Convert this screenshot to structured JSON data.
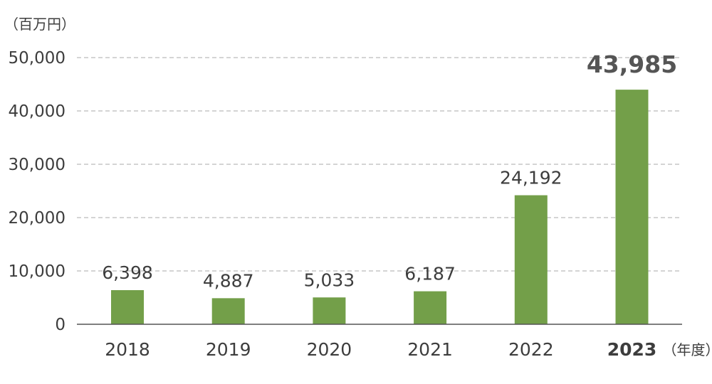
{
  "chart_data": {
    "type": "bar",
    "y_unit_label": "（百万円）",
    "x_unit_label": "（年度）",
    "categories": [
      "2018",
      "2019",
      "2020",
      "2021",
      "2022",
      "2023"
    ],
    "values": [
      6398,
      4887,
      5033,
      6187,
      24192,
      43985
    ],
    "value_labels": [
      "6,398",
      "4,887",
      "5,033",
      "6,187",
      "24,192",
      "43,985"
    ],
    "y_ticks": [
      0,
      10000,
      20000,
      30000,
      40000,
      50000
    ],
    "y_tick_labels": [
      "0",
      "10,000",
      "20,000",
      "30,000",
      "40,000",
      "50,000"
    ],
    "ylim": [
      0,
      50000
    ],
    "highlight_index": 5,
    "grid": "horizontal-dashed",
    "bar_color": "#739f49"
  }
}
